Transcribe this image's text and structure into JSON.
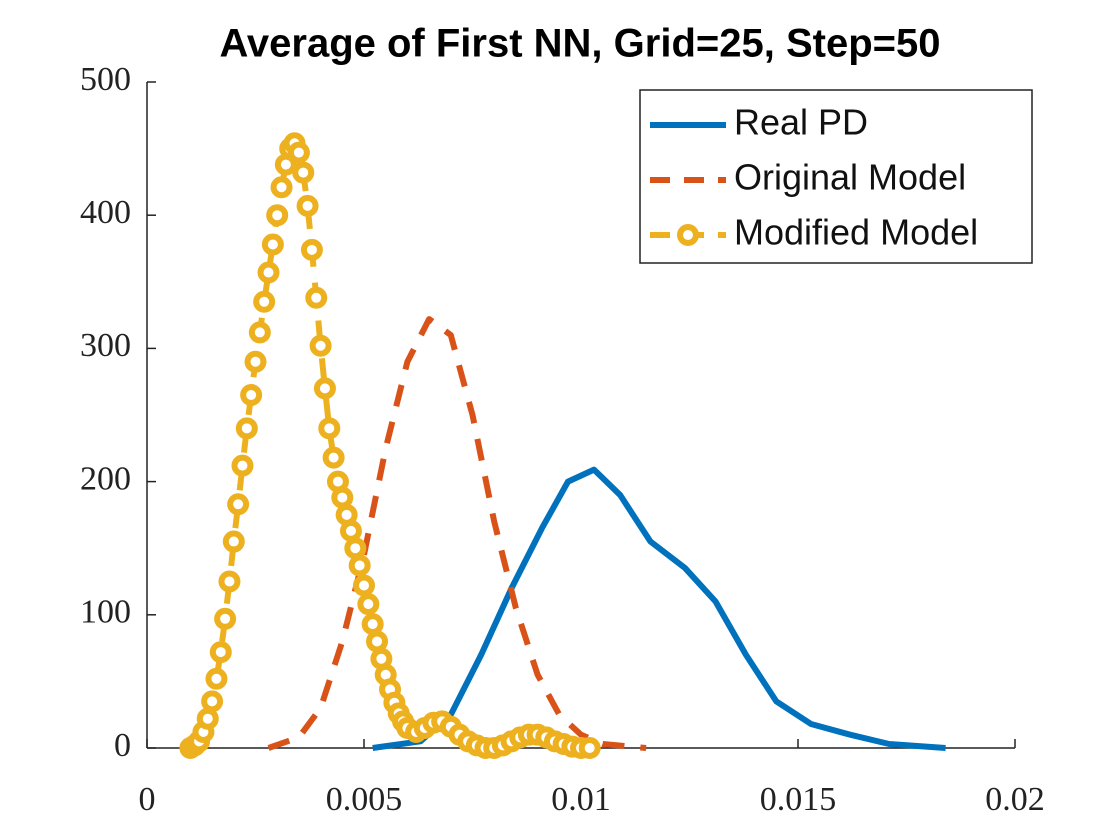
{
  "chart_data": {
    "type": "line",
    "title": "Average of First NN, Grid=25, Step=50",
    "xlim": [
      0,
      0.02
    ],
    "xticks": [
      0,
      0.005,
      0.01,
      0.015,
      0.02
    ],
    "ylim": [
      0,
      500
    ],
    "yticks": [
      0,
      100,
      200,
      300,
      400,
      500
    ],
    "legend": "upper right",
    "series": [
      {
        "name": "Real PD",
        "color": "#0072bd",
        "line_style": "solid",
        "marker": "none",
        "x": [
          0.0052,
          0.0063,
          0.007,
          0.0077,
          0.0084,
          0.0091,
          0.0097,
          0.0103,
          0.0109,
          0.0116,
          0.0124,
          0.0131,
          0.0138,
          0.0145,
          0.0153,
          0.0162,
          0.0171,
          0.0184
        ],
        "values": [
          0,
          5,
          25,
          70,
          120,
          165,
          200,
          209,
          190,
          155,
          135,
          110,
          70,
          35,
          18,
          10,
          3,
          0
        ]
      },
      {
        "name": "Original Model",
        "color": "#d95319",
        "line_style": "dashed",
        "marker": "none",
        "x": [
          0.0028,
          0.0035,
          0.004,
          0.0045,
          0.005,
          0.0055,
          0.006,
          0.0065,
          0.007,
          0.0075,
          0.008,
          0.0085,
          0.009,
          0.0095,
          0.01,
          0.0105,
          0.0115
        ],
        "values": [
          0,
          8,
          30,
          80,
          145,
          225,
          290,
          322,
          310,
          250,
          170,
          105,
          55,
          25,
          10,
          3,
          0
        ]
      },
      {
        "name": "Modified Model",
        "color": "#edb120",
        "line_style": "dashed",
        "marker": "circle",
        "x": [
          0.001,
          0.0011,
          0.0012,
          0.0013,
          0.0014,
          0.0015,
          0.0016,
          0.0017,
          0.0018,
          0.0019,
          0.002,
          0.0021,
          0.0022,
          0.0023,
          0.0024,
          0.0025,
          0.0026,
          0.0027,
          0.0028,
          0.0029,
          0.003,
          0.0031,
          0.0032,
          0.0033,
          0.0034,
          0.0035,
          0.0036,
          0.0037,
          0.0038,
          0.0039,
          0.004,
          0.0041,
          0.0042,
          0.0043,
          0.0044,
          0.0045,
          0.0046,
          0.0047,
          0.0048,
          0.0049,
          0.005,
          0.0051,
          0.0052,
          0.0053,
          0.0054,
          0.0055,
          0.0056,
          0.0057,
          0.0058,
          0.0059,
          0.006,
          0.0062,
          0.0064,
          0.0066,
          0.0068,
          0.007,
          0.0072,
          0.0074,
          0.0076,
          0.0078,
          0.008,
          0.0082,
          0.0084,
          0.0086,
          0.0088,
          0.009,
          0.0092,
          0.0094,
          0.0096,
          0.0098,
          0.01,
          0.0102
        ],
        "values": [
          0,
          2,
          5,
          12,
          22,
          35,
          52,
          72,
          97,
          125,
          155,
          183,
          212,
          240,
          265,
          290,
          312,
          335,
          357,
          378,
          400,
          421,
          438,
          450,
          454,
          447,
          432,
          407,
          374,
          338,
          302,
          270,
          240,
          218,
          200,
          188,
          175,
          163,
          150,
          137,
          122,
          108,
          93,
          80,
          67,
          55,
          44,
          34,
          26,
          20,
          15,
          12,
          15,
          19,
          20,
          16,
          10,
          5,
          2,
          0,
          0,
          2,
          5,
          8,
          10,
          10,
          8,
          5,
          3,
          1,
          0,
          0
        ]
      }
    ]
  }
}
